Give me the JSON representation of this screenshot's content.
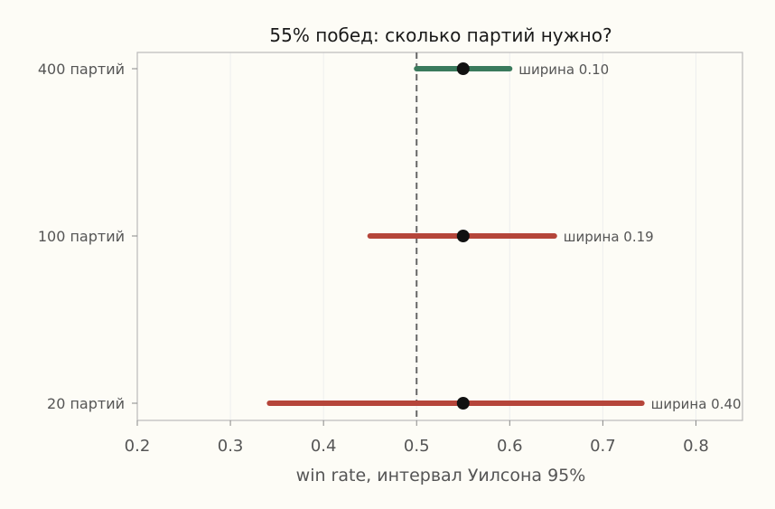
{
  "chart_data": {
    "type": "errorbar",
    "title": "55% побед: сколько партий нужно?",
    "xlabel": "win rate, интервал Уилсона 95%",
    "ylabel": "",
    "xlim": [
      0.2,
      0.85
    ],
    "x_ticks": [
      "0.2",
      "0.3",
      "0.4",
      "0.5",
      "0.6",
      "0.7",
      "0.8"
    ],
    "x_tick_values": [
      0.2,
      0.3,
      0.4,
      0.5,
      0.6,
      0.7,
      0.8
    ],
    "reference_line": 0.5,
    "grid": "vertical",
    "rows": [
      {
        "label": "400 партий",
        "point": 0.55,
        "low": 0.5,
        "high": 0.6,
        "annotation": "ширина 0.10",
        "color": "#3a7a5c"
      },
      {
        "label": "100 партий",
        "point": 0.55,
        "low": 0.45,
        "high": 0.648,
        "annotation": "ширина 0.19",
        "color": "#b5453a"
      },
      {
        "label": "20 партий",
        "point": 0.55,
        "low": 0.342,
        "high": 0.742,
        "annotation": "ширина 0.40",
        "color": "#b5453a"
      }
    ],
    "colors": {
      "point": "#111111",
      "reference_line": "#666666",
      "axes": "#bbbbbb",
      "grid": "#eeeeee"
    }
  }
}
